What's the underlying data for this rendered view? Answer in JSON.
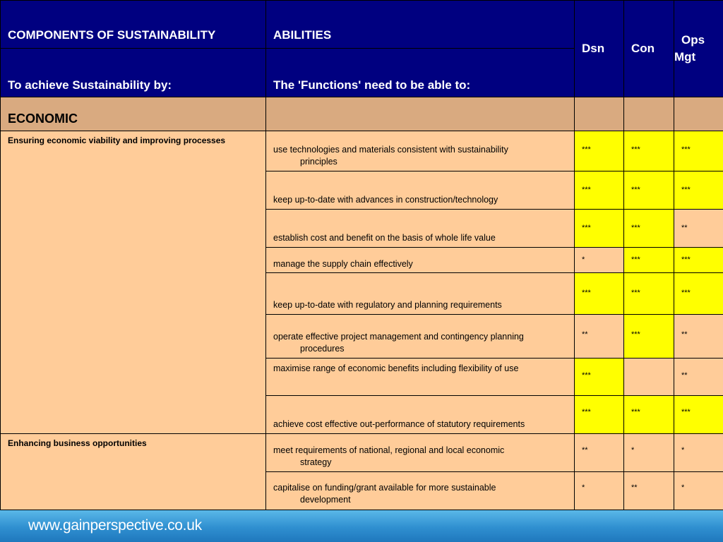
{
  "header": {
    "col1_top": "COMPONENTS OF SUSTAINABILITY",
    "col2_top": "ABILITIES",
    "col1_bottom": "To achieve Sustainability by:",
    "col2_bottom": "The 'Functions' need to be able to:",
    "dsn": "Dsn",
    "con": "Con",
    "ops_line1": "Ops",
    "ops_line2": "Mgt"
  },
  "section": {
    "title": "ECONOMIC"
  },
  "components": {
    "c1": "Ensuring economic viability and improving processes",
    "c2": "Enhancing business opportunities"
  },
  "rows": [
    {
      "line1": "use technologies and materials consistent with sustainability",
      "line2": "principles",
      "dsn": "***",
      "con": "***",
      "ops": "***"
    },
    {
      "line1": "keep up-to-date with advances in construction/technology",
      "line2": "",
      "dsn": "***",
      "con": "***",
      "ops": "***"
    },
    {
      "line1": "establish cost and benefit on the basis of whole life value",
      "line2": "",
      "dsn": "***",
      "con": "***",
      "ops": "**"
    },
    {
      "line1": "manage the supply chain effectively",
      "line2": "",
      "dsn": "*",
      "con": "***",
      "ops": "***"
    },
    {
      "line1": "keep up-to-date with regulatory and planning requirements",
      "line2": "",
      "dsn": "***",
      "con": "***",
      "ops": "***"
    },
    {
      "line1": "operate effective project management and contingency planning",
      "line2": "procedures",
      "dsn": "**",
      "con": "***",
      "ops": "**"
    },
    {
      "line1": "maximise range of economic benefits including flexibility of use",
      "line2": "",
      "dsn": "***",
      "con": "",
      "ops": "**"
    },
    {
      "line1": "achieve cost effective out-performance of statutory requirements",
      "line2": "",
      "dsn": "***",
      "con": "***",
      "ops": "***"
    },
    {
      "line1": "meet requirements of national, regional and local economic",
      "line2": "strategy",
      "dsn": "**",
      "con": "*",
      "ops": "*"
    },
    {
      "line1": "capitalise on funding/grant available for more sustainable",
      "line2": "development",
      "dsn": "*",
      "con": "**",
      "ops": "*"
    }
  ],
  "colors": {
    "header_bg": "#000080",
    "section_bg": "#d9aa80",
    "cell_bg": "#ffcc99",
    "highlight_bg": "#ffff00"
  },
  "footer": {
    "url": "www.gainperspective.co.uk"
  }
}
